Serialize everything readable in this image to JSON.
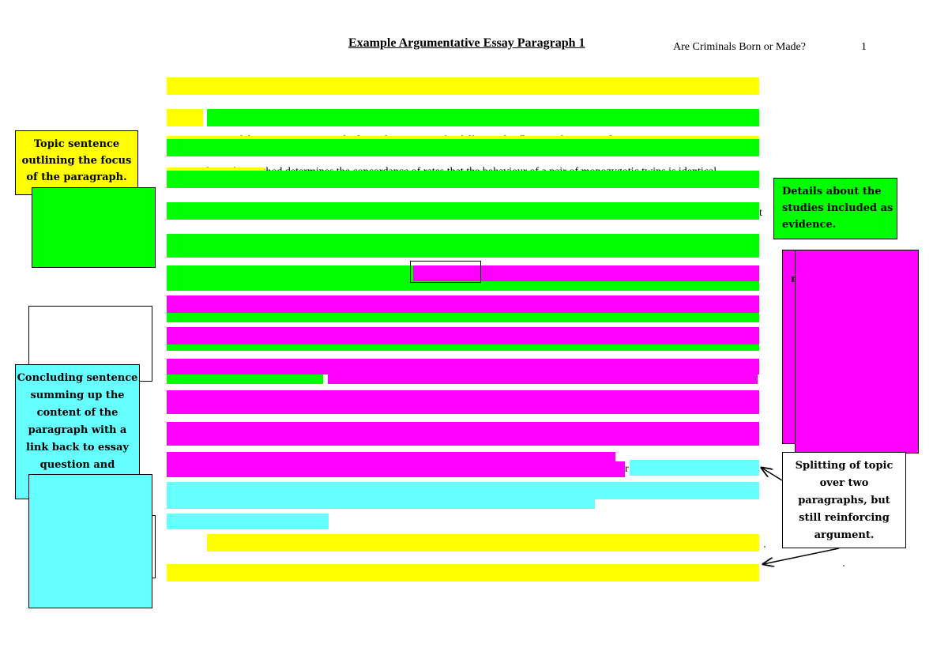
{
  "header": {
    "title": "Example Argumentative Essay Paragraph 1",
    "running_head": "Are Criminals Born or Made?",
    "page_number": "1"
  },
  "essay": {
    "line_3_fragment": "One of the most common methods used to examine the differential influence of nature and nurture",
    "line_4_fragment": "twin studies. This method determines the concordance of rates that the behaviour of a pair of monozygotic twins is identical",
    "line_5_fragment": "t",
    "line_14_fragment": "r"
  },
  "annotations": {
    "topic_sentence": "Topic sentence outlining the focus of the paragraph.",
    "details": "Details about the studies included as evidence.",
    "concluding": "Concluding sentence summing up the content of the paragraph with a link back to essay question and",
    "splitting": "Splitting of topic over two paragraphs, but still reinforcing argument.",
    "magenta_box_fragment": "n"
  },
  "colors": {
    "yellow": "#ffff00",
    "green": "#00ff00",
    "magenta": "#ff00ff",
    "cyan": "#66ffff"
  }
}
